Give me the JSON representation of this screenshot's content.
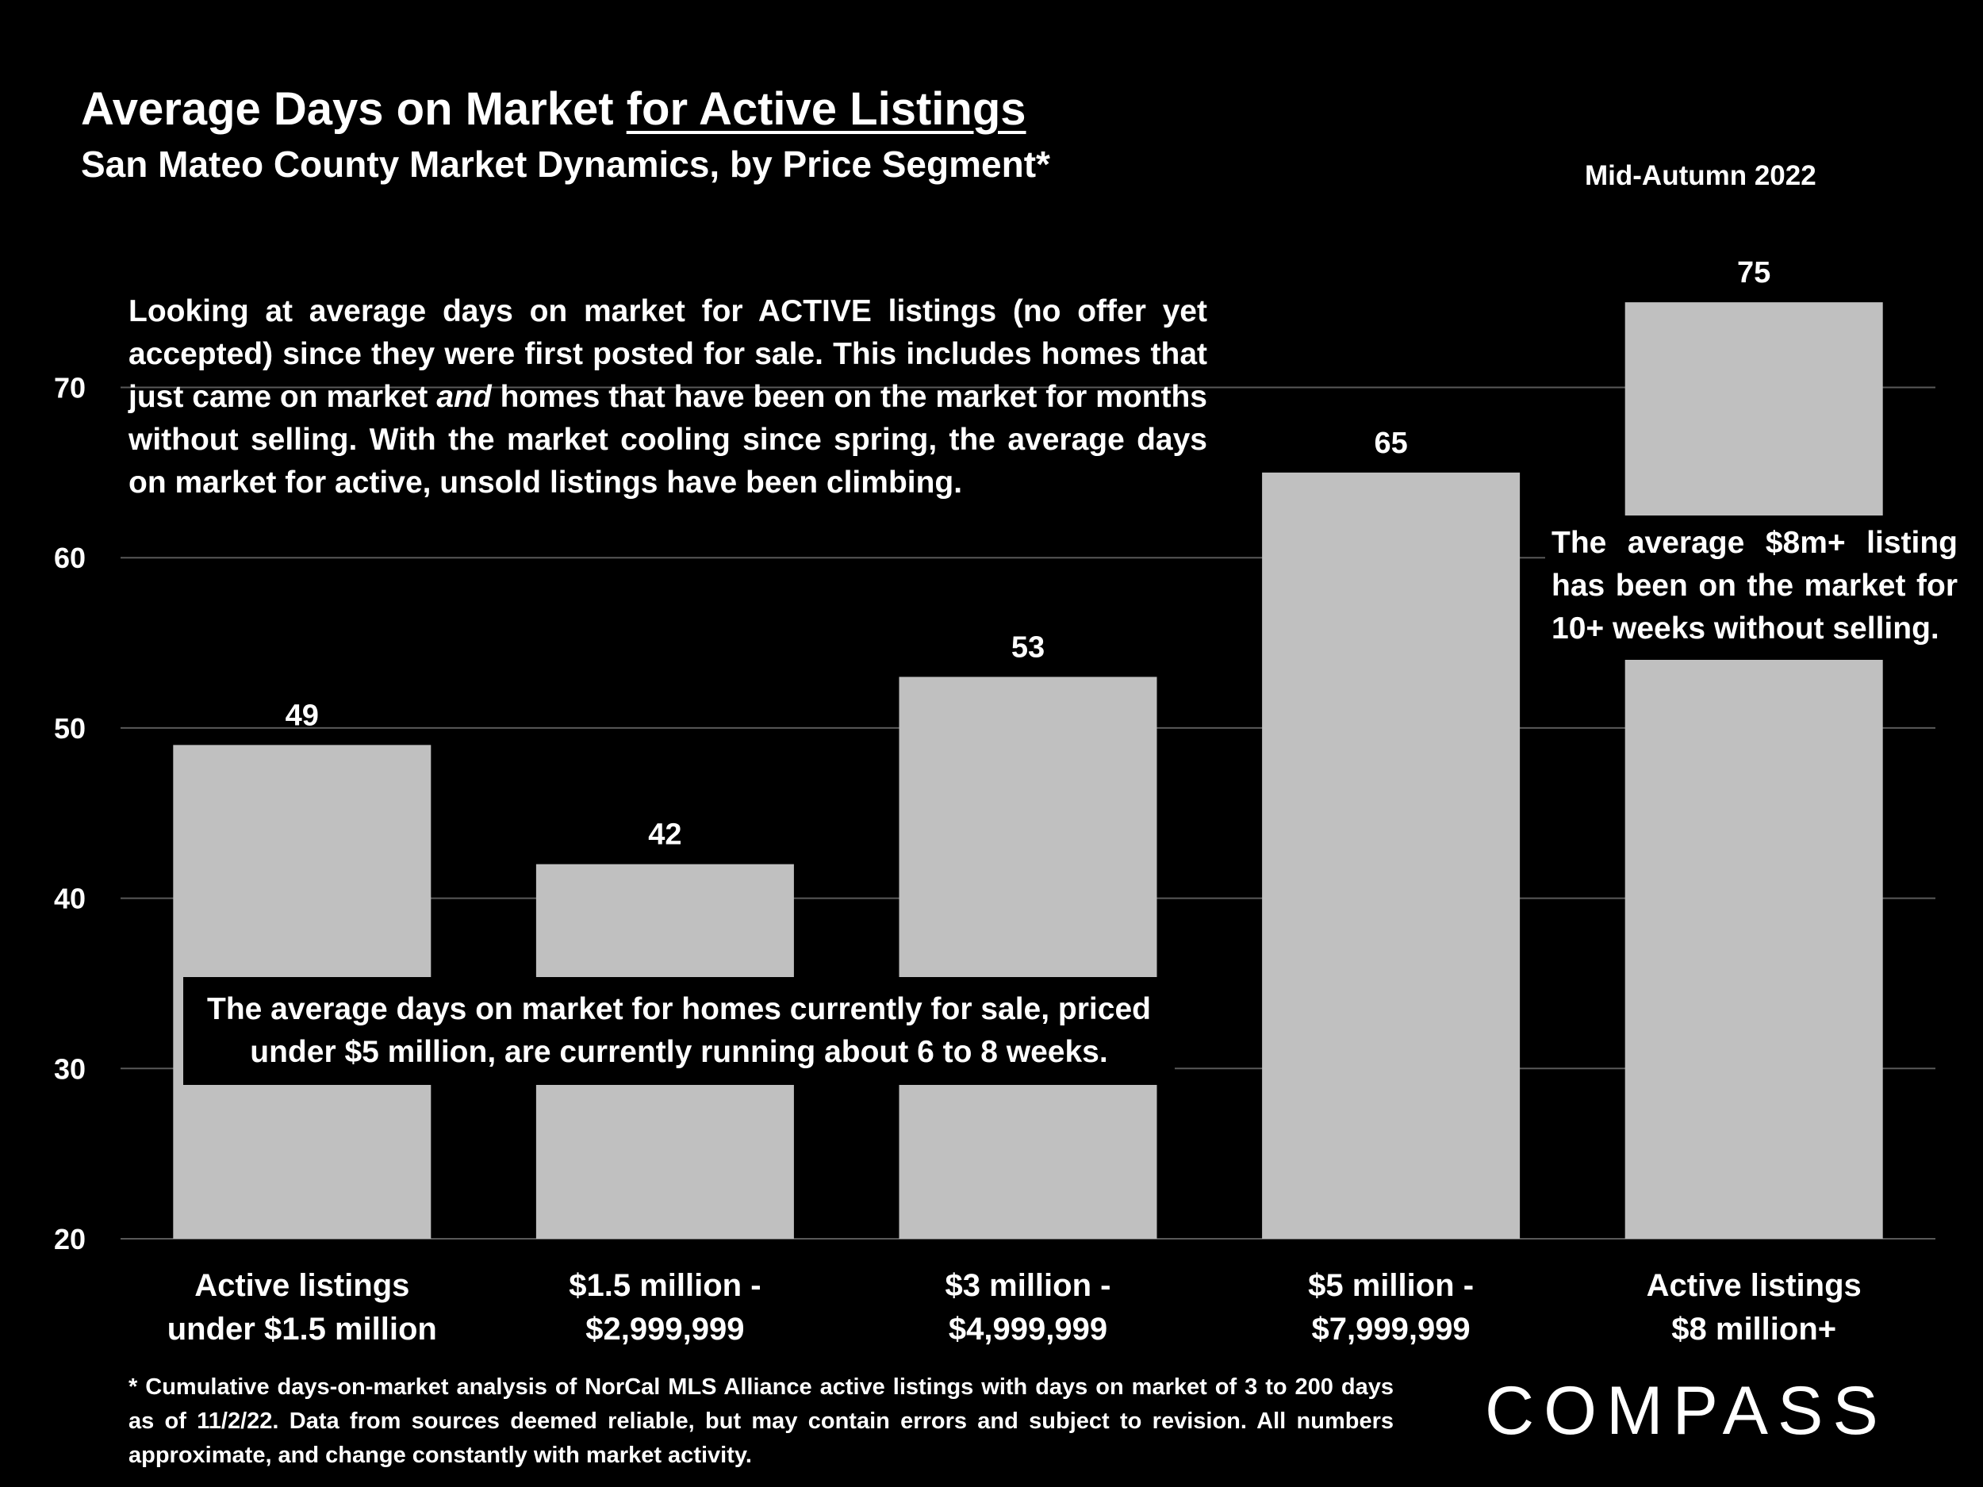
{
  "header": {
    "title_part1": "Average Days on Market ",
    "title_part2": "for Active Listings",
    "subtitle": "San Mateo County Market Dynamics, by Price Segment*",
    "period": "Mid-Autumn 2022"
  },
  "annotations": {
    "active_note_part1": "Looking at average days on market for ACTIVE listings (no offer yet accepted) since they were first posted for sale. This includes homes that just came on market ",
    "active_note_emphasis": "and",
    "active_note_part2": " homes that have been on the market for months without selling. With the market cooling since spring, the average days on market for active, unsold listings have been climbing.",
    "under5m_note_line1": "The average days on market for homes currently for sale, priced",
    "under5m_note_line2": "under $5 million, are currently running about 6 to 8 weeks.",
    "over8m_note": "The average $8m+ listing has been on the market for 10+ weeks without selling."
  },
  "footnote": "* Cumulative days-on-market analysis of NorCal MLS Alliance active listings with days on market of 3 to 200 days as of 11/2/22. Data from sources deemed reliable, but may contain errors and subject to revision. All numbers approximate, and change constantly with market activity.",
  "brand": {
    "logo_text": "COMPASS"
  },
  "colors": {
    "background": "#000000",
    "bar": "#c0c0c0",
    "text": "#ffffff",
    "grid": "#595959"
  },
  "chart_data": {
    "type": "bar",
    "categories": [
      [
        "Active listings",
        "under $1.5 million"
      ],
      [
        "$1.5 million -",
        "$2,999,999"
      ],
      [
        "$3 million -",
        "$4,999,999"
      ],
      [
        "$5 million -",
        "$7,999,999"
      ],
      [
        "Active listings",
        "$8 million+"
      ]
    ],
    "values": [
      49,
      42,
      53,
      65,
      75
    ],
    "data_labels": [
      "49",
      "42",
      "53",
      "65",
      "75"
    ],
    "ylim": [
      20,
      75
    ],
    "yticks": [
      20,
      30,
      40,
      50,
      60,
      70
    ],
    "grid": true,
    "legend": "none"
  }
}
